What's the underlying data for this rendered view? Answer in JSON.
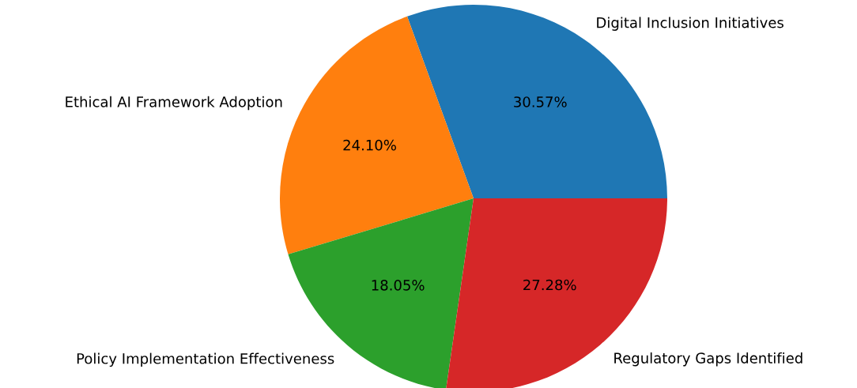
{
  "chart_data": {
    "type": "pie",
    "categories": [
      "Digital Inclusion Initiatives",
      "Ethical AI Framework Adoption",
      "Policy Implementation Effectiveness",
      "Regulatory Gaps Identified"
    ],
    "values": [
      30.57,
      24.1,
      18.05,
      27.28
    ],
    "colors": [
      "#1f77b4",
      "#ff7f0e",
      "#2ca02c",
      "#d62728"
    ],
    "value_labels": [
      "30.57%",
      "24.10%",
      "18.05%",
      "27.28%"
    ]
  }
}
